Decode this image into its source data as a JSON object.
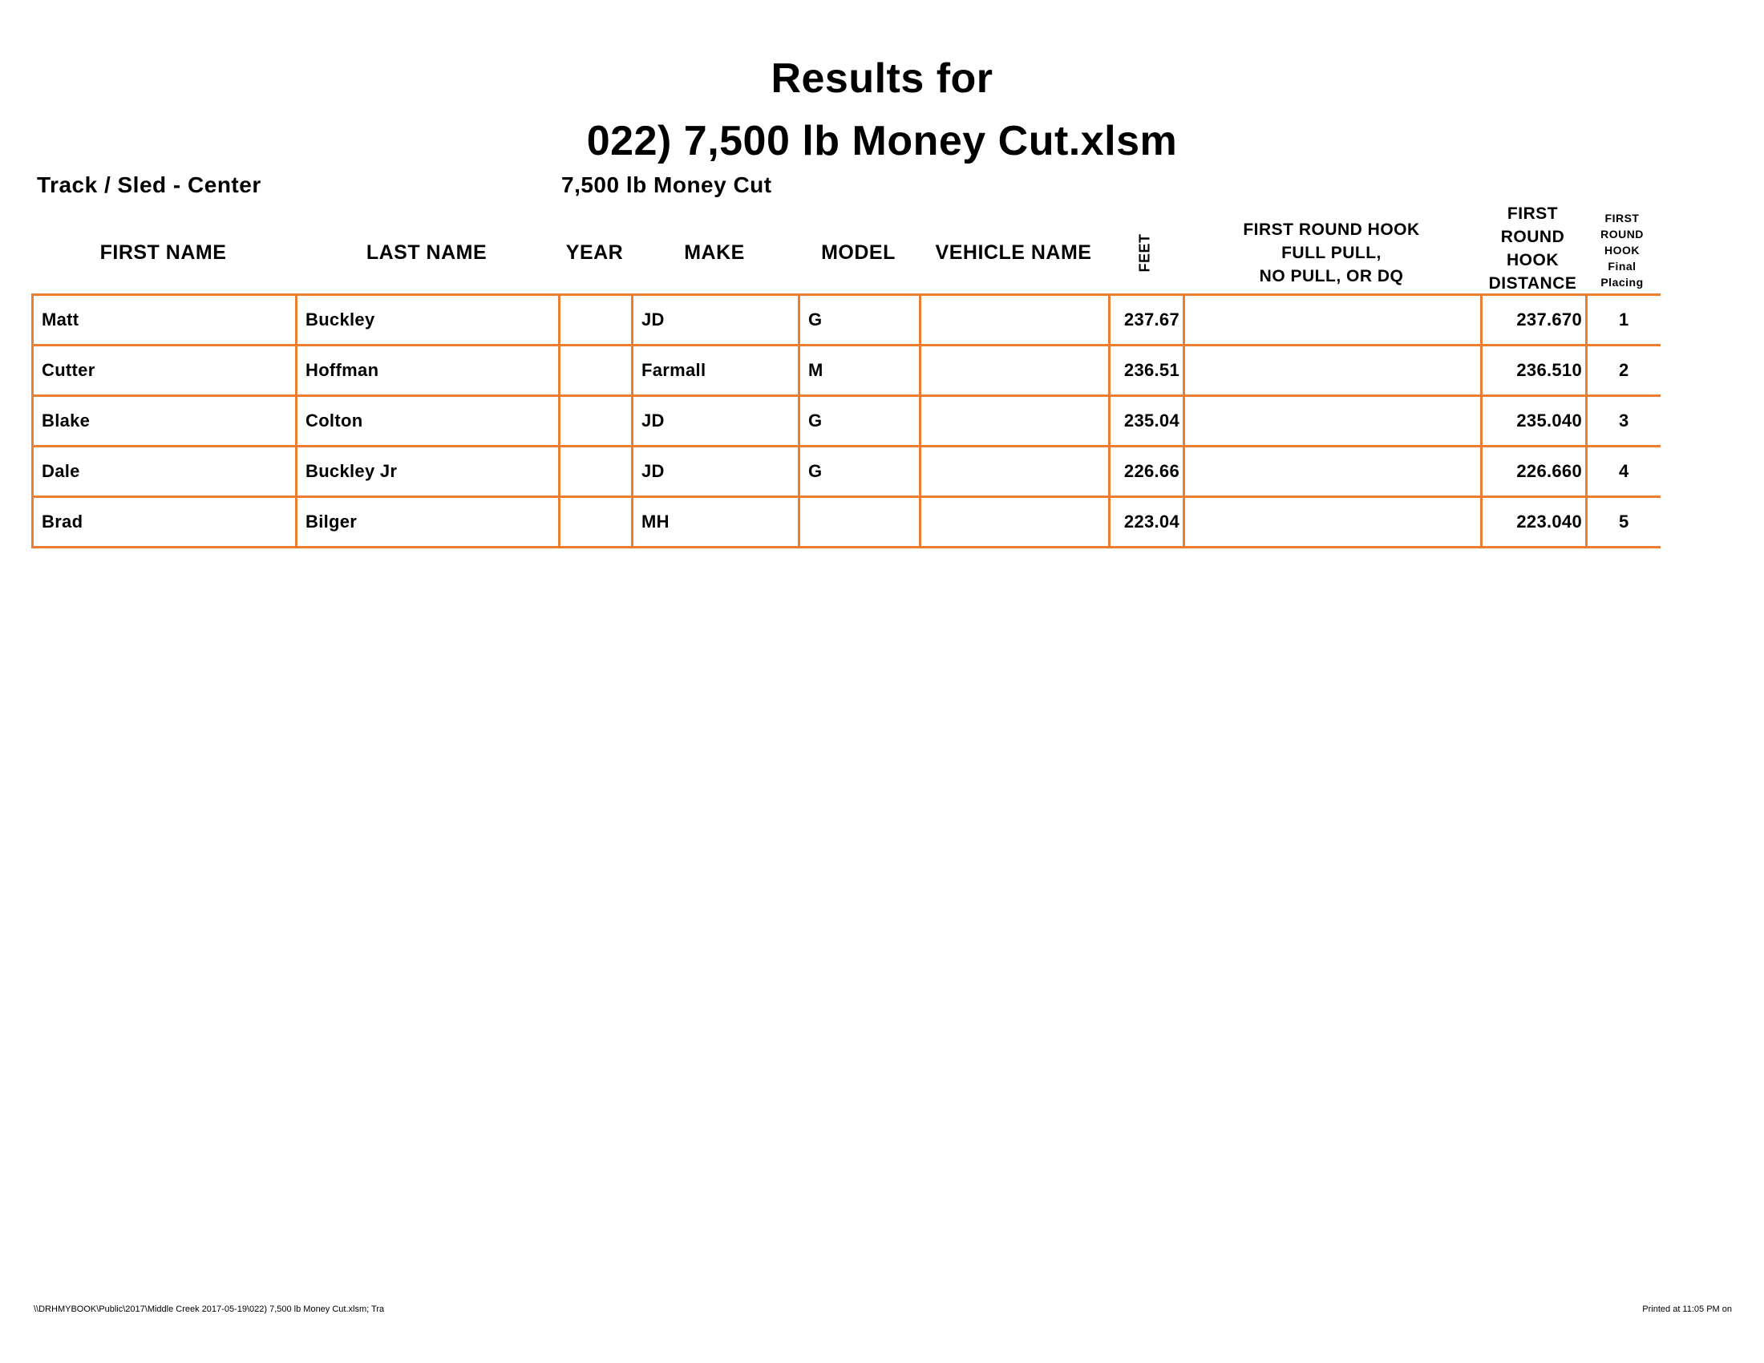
{
  "title_line1": "Results for",
  "title_line2": "022) 7,500 lb Money Cut.xlsm",
  "track": "Track / Sled - Center",
  "class_name": "7,500 lb Money Cut",
  "accent_color": "#ED7D31",
  "columns": {
    "first_name": "FIRST NAME",
    "last_name": "LAST NAME",
    "year": "YEAR",
    "make": "MAKE",
    "model": "MODEL",
    "vehicle_name": "VEHICLE NAME",
    "feet": "FEET",
    "hook_status": [
      "FIRST ROUND HOOK",
      "FULL PULL,",
      "NO PULL, OR DQ"
    ],
    "hook_distance": [
      "FIRST",
      "ROUND",
      "HOOK",
      "DISTANCE"
    ],
    "placing": [
      "FIRST",
      "ROUND",
      "HOOK",
      "Final",
      "Placing"
    ]
  },
  "rows": [
    {
      "first": "Matt",
      "last": "Buckley",
      "year": "",
      "make": "JD",
      "model": "G",
      "vehicle": "",
      "feet": "237.67",
      "status": "",
      "distance": "237.670",
      "place": "1"
    },
    {
      "first": "Cutter",
      "last": "Hoffman",
      "year": "",
      "make": "Farmall",
      "model": "M",
      "vehicle": "",
      "feet": "236.51",
      "status": "",
      "distance": "236.510",
      "place": "2"
    },
    {
      "first": "Blake",
      "last": "Colton",
      "year": "",
      "make": "JD",
      "model": "G",
      "vehicle": "",
      "feet": "235.04",
      "status": "",
      "distance": "235.040",
      "place": "3"
    },
    {
      "first": "Dale",
      "last": "Buckley Jr",
      "year": "",
      "make": "JD",
      "model": "G",
      "vehicle": "",
      "feet": "226.66",
      "status": "",
      "distance": "226.660",
      "place": "4"
    },
    {
      "first": "Brad",
      "last": "Bilger",
      "year": "",
      "make": "MH",
      "model": "",
      "vehicle": "",
      "feet": "223.04",
      "status": "",
      "distance": "223.040",
      "place": "5"
    }
  ],
  "footer": {
    "path": "\\\\DRHMYBOOK\\Public\\2017\\Middle Creek 2017-05-19\\022) 7,500 lb Money Cut.xlsm; Tra",
    "printed": "Printed at 11:05 PM on"
  }
}
